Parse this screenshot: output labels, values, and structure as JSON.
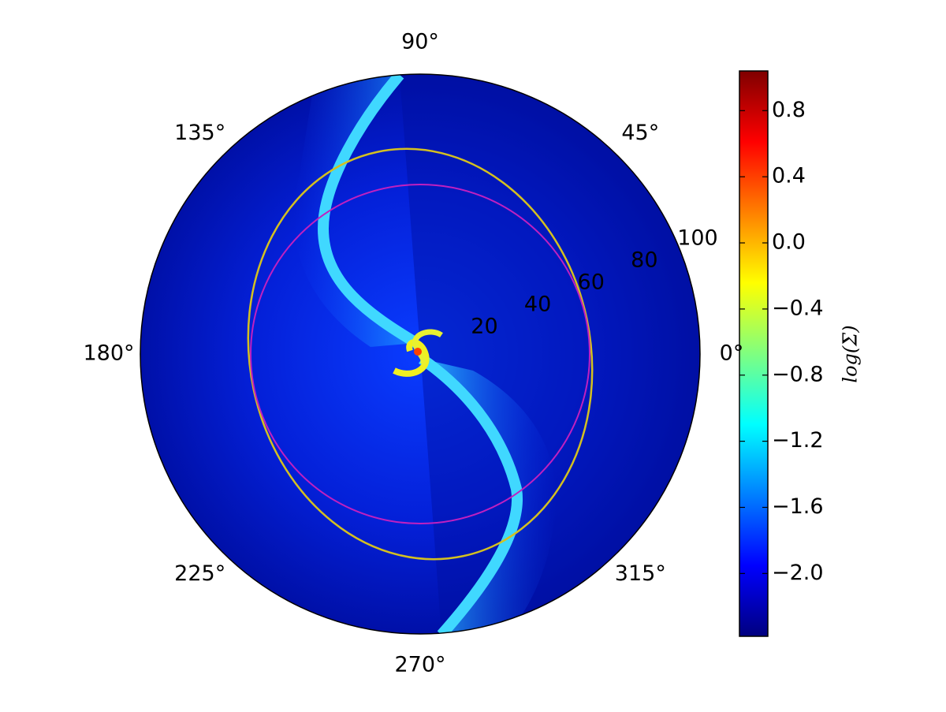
{
  "chart_data": {
    "type": "polar_heatmap",
    "rlim": [
      0,
      97
    ],
    "rticks": [
      20,
      40,
      60,
      80,
      100
    ],
    "thetaticks": [
      {
        "value": 0,
        "label": "0°"
      },
      {
        "value": 45,
        "label": "45°"
      },
      {
        "value": 90,
        "label": "90°"
      },
      {
        "value": 135,
        "label": "135°"
      },
      {
        "value": 180,
        "label": "180°"
      },
      {
        "value": 225,
        "label": "225°"
      },
      {
        "value": 270,
        "label": "270°"
      },
      {
        "value": 315,
        "label": "315°"
      }
    ],
    "colormap": "jet",
    "colorbar": {
      "label": "log(Σ)",
      "clim": [
        -2.38,
        1.04
      ],
      "ticks": [
        0.8,
        0.4,
        {
          "value": 0,
          "label": "0.0"
        },
        {
          "value": -0.4,
          "label": "−0.4"
        },
        {
          "value": -0.8,
          "label": "−0.8"
        },
        {
          "value": -1.2,
          "label": "−1.2"
        },
        {
          "value": -1.6,
          "label": "−1.6"
        },
        {
          "value": -2.0,
          "label": "−2.0"
        }
      ]
    }
  }
}
